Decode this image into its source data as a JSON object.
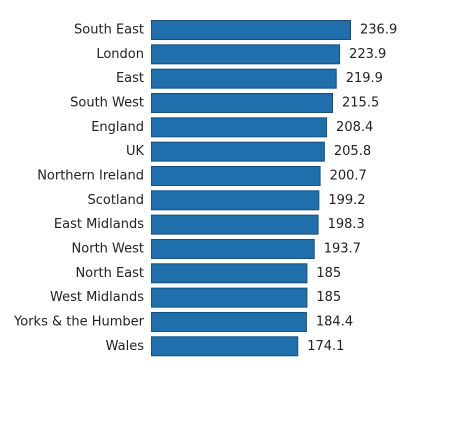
{
  "chart_data": {
    "type": "bar",
    "orientation": "horizontal",
    "title": "",
    "xlabel": "",
    "ylabel": "",
    "categories": [
      "South East",
      "London",
      "East",
      "South West",
      "England",
      "UK",
      "Northern Ireland",
      "Scotland",
      "East Midlands",
      "North West",
      "North East",
      "West Midlands",
      "Yorks & the Humber",
      "Wales"
    ],
    "values": [
      236.9,
      223.9,
      219.9,
      215.5,
      208.4,
      205.8,
      200.7,
      199.2,
      198.3,
      193.7,
      185,
      185,
      184.4,
      174.1
    ],
    "value_labels": [
      "236.9",
      "223.9",
      "219.9",
      "215.5",
      "208.4",
      "205.8",
      "200.7",
      "199.2",
      "198.3",
      "193.7",
      "185",
      "185",
      "184.4",
      "174.1"
    ],
    "xlim": [
      0,
      236.9
    ],
    "grid": false,
    "legend": "none",
    "colors": {
      "bar_fill": "#1f6fad",
      "bar_stroke": "#15507e",
      "text": "#222222",
      "axis": "#999999"
    }
  }
}
